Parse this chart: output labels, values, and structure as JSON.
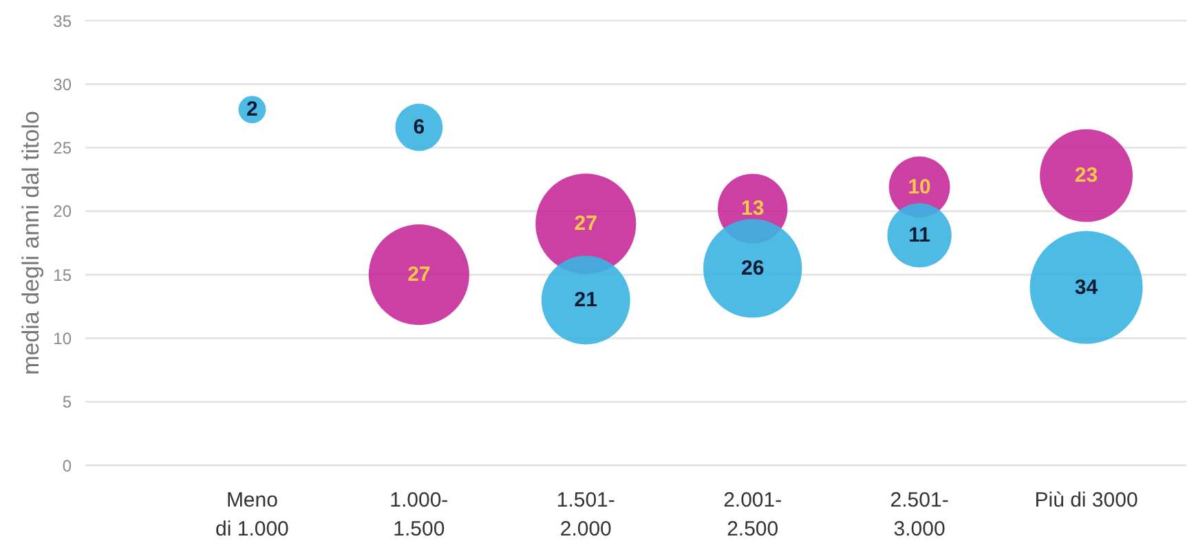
{
  "chart_data": {
    "type": "bubble",
    "ylabel": "media degli anni dal titolo",
    "categories": [
      "Meno\ndi 1.000",
      "1.000-\n1.500",
      "1.501-\n2.000",
      "2.001-\n2.500",
      "2.501-\n3.000",
      "Più di 3000"
    ],
    "series": [
      {
        "color": "#c62a99",
        "values": [
          null,
          15,
          19,
          20.2,
          21.9,
          22.8
        ],
        "sizes": [
          null,
          27,
          27,
          13,
          10,
          23
        ],
        "value_labels": [
          null,
          "27",
          "27",
          "13",
          "10",
          "23"
        ]
      },
      {
        "color": "#3ab4e1",
        "values": [
          28,
          26.6,
          13,
          15.5,
          18.1,
          14
        ],
        "sizes": [
          2,
          6,
          21,
          26,
          11,
          34
        ],
        "value_labels": [
          "2",
          "6",
          "21",
          "26",
          "11",
          "34"
        ]
      }
    ],
    "ylim": [
      0,
      35
    ],
    "yticks": [
      0,
      5,
      10,
      15,
      20,
      25,
      30,
      35
    ],
    "grid": "y"
  }
}
